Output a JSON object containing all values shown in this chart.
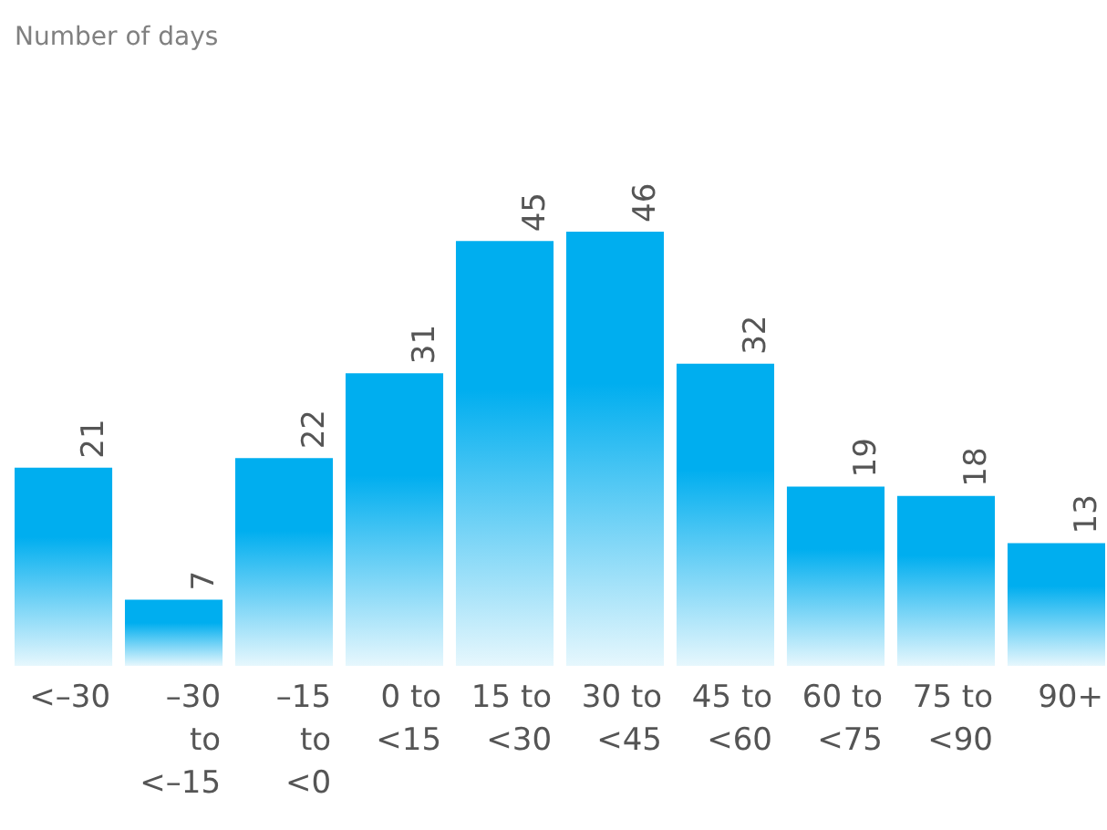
{
  "chart_data": {
    "type": "bar",
    "title": "Number of days",
    "categories": [
      "<–30",
      "–30 to <–15",
      "–15 to <0",
      "0 to <15",
      "15 to <30",
      "30 to <45",
      "45 to <60",
      "60 to <75",
      "75 to <90",
      "90+"
    ],
    "values": [
      21,
      7,
      22,
      31,
      45,
      46,
      32,
      19,
      18,
      13
    ],
    "color": "#00aeef",
    "data_labels": true
  }
}
